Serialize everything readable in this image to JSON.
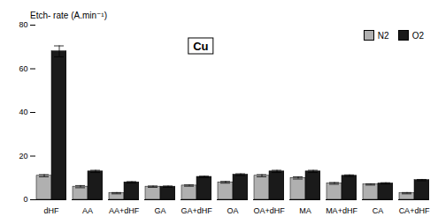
{
  "chart_data": {
    "type": "bar",
    "title": "Cu",
    "ylabel": "Etch- rate (A.min⁻¹)",
    "categories": [
      "dHF",
      "AA",
      "AA+dHF",
      "GA",
      "GA+dHF",
      "OA",
      "OA+dHF",
      "MA",
      "MA+dHF",
      "CA",
      "CA+dHF"
    ],
    "series": [
      {
        "name": "N2",
        "color": "#b0b0b0",
        "values": [
          11,
          6,
          3,
          6,
          6.5,
          8,
          11,
          10,
          7.5,
          7,
          3
        ],
        "errors": [
          0.5,
          0.5,
          0.3,
          0.3,
          0.3,
          0.4,
          0.5,
          0.5,
          0.4,
          0.3,
          0.3
        ]
      },
      {
        "name": "O2",
        "color": "#1a1a1a",
        "values": [
          68,
          13,
          8,
          6,
          10.5,
          11.5,
          13,
          13,
          11,
          7.5,
          9
        ],
        "errors": [
          2.5,
          0.5,
          0.3,
          0.3,
          0.3,
          0.4,
          0.5,
          0.5,
          0.4,
          0.3,
          0.3
        ]
      }
    ],
    "ylim": [
      0,
      80
    ],
    "yticks": [
      0,
      20,
      40,
      60,
      80
    ],
    "legend": "upper right"
  }
}
